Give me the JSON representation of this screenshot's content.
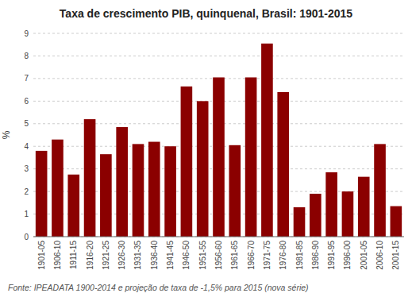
{
  "chart_data": {
    "type": "bar",
    "title": "Taxa de crescimento PIB, quinquenal, Brasil: 1901-2015",
    "ylabel": "%",
    "footnote": "Fonte: IPEADATA 1900-2014 e projeção de taxa de -1,5% para 2015 (nova série)",
    "categories": [
      "1901-05",
      "1906-10",
      "1911-15",
      "1916-20",
      "1921-25",
      "1926-30",
      "1931-35",
      "1936-40",
      "1941-45",
      "1946-50",
      "1951-55",
      "1956-60",
      "1961-65",
      "1966-70",
      "1971-75",
      "1976-80",
      "1981-85",
      "1986-90",
      "1991-95",
      "1996-00",
      "2001-05",
      "2006-10",
      "2001-15"
    ],
    "values": [
      3.8,
      4.3,
      2.75,
      5.2,
      3.65,
      4.85,
      4.1,
      4.2,
      4.0,
      6.65,
      6.0,
      7.05,
      4.05,
      7.05,
      8.55,
      6.4,
      1.3,
      1.9,
      2.85,
      2.0,
      2.65,
      4.1,
      1.35
    ],
    "color": "#8B0000",
    "ylim": [
      0,
      9
    ],
    "yticks": [
      0,
      1,
      2,
      3,
      4,
      5,
      6,
      7,
      8,
      9
    ],
    "grid": true
  }
}
